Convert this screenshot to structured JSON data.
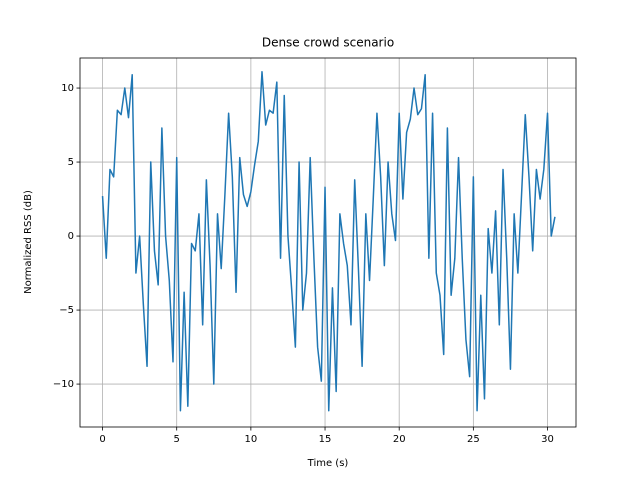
{
  "chart_data": {
    "type": "line",
    "title": "Dense crowd scenario",
    "x_label": "Time (s)",
    "y_label": "Normalized RSS (dB)",
    "x": [
      0,
      0.25,
      0.5,
      0.75,
      1,
      1.25,
      1.5,
      1.75,
      2,
      2.25,
      2.5,
      2.75,
      3,
      3.25,
      3.5,
      3.75,
      4,
      4.25,
      4.5,
      4.75,
      5,
      5.25,
      5.5,
      5.75,
      6,
      6.25,
      6.5,
      6.75,
      7,
      7.25,
      7.5,
      7.75,
      8,
      8.25,
      8.5,
      8.75,
      9,
      9.25,
      9.5,
      9.75,
      10,
      10.25,
      10.5,
      10.75,
      11,
      11.25,
      11.5,
      11.75,
      12,
      12.25,
      12.5,
      12.75,
      13,
      13.25,
      13.5,
      13.75,
      14,
      14.25,
      14.5,
      14.75,
      15,
      15.25,
      15.5,
      15.75,
      16,
      16.25,
      16.5,
      16.75,
      17,
      17.25,
      17.5,
      17.75,
      18,
      18.25,
      18.5,
      18.75,
      19,
      19.25,
      19.5,
      19.75,
      20,
      20.25,
      20.5,
      20.75,
      21,
      21.25,
      21.5,
      21.75,
      22,
      22.25,
      22.5,
      22.75,
      23,
      23.25,
      23.5,
      23.75,
      24,
      24.25,
      24.5,
      24.75,
      25,
      25.25,
      25.5,
      25.75,
      26,
      26.25,
      26.5,
      26.75,
      27,
      27.25,
      27.5,
      27.75,
      28,
      28.25,
      28.5,
      28.75,
      29,
      29.25,
      29.5,
      29.75,
      30,
      30.25,
      30.5
    ],
    "series": [
      {
        "name": "RSS",
        "color": "#1f77b4",
        "values": [
          2.7,
          -1.5,
          4.5,
          4,
          8.5,
          8.2,
          10,
          8,
          10.9,
          -2.5,
          0,
          -4.6,
          -8.8,
          5,
          -1,
          -3.3,
          7.3,
          0,
          -3,
          -8.5,
          5.3,
          -11.8,
          -3.8,
          -11.5,
          -0.5,
          -1,
          1.5,
          -6,
          3.8,
          -2,
          -10,
          1.5,
          -2.2,
          2.8,
          8.3,
          4,
          -3.8,
          5.3,
          2.8,
          2,
          3,
          4.8,
          6.4,
          11.1,
          7.5,
          8.5,
          8.3,
          10.4,
          -1.5,
          9.5,
          0,
          -3.6,
          -7.5,
          5,
          -5,
          -2.5,
          5.3,
          -1.5,
          -7.5,
          -9.8,
          3.3,
          -11.8,
          -3.5,
          -10.5,
          1.5,
          -0.5,
          -2,
          -6,
          3.8,
          -2.2,
          -8.8,
          1.5,
          -3,
          2.5,
          8.3,
          4,
          -2,
          5,
          1.5,
          -0.3,
          8.3,
          2.5,
          7,
          7.9,
          10,
          8.2,
          8.6,
          10.9,
          -1.5,
          8.3,
          -2.5,
          -4,
          -8,
          7.3,
          -4,
          -1.5,
          5.3,
          -1.5,
          -7,
          -9.5,
          4,
          -11.8,
          -4,
          -11,
          0.5,
          -2.5,
          1.7,
          -6,
          4.5,
          -1.5,
          -9,
          1.5,
          -2.5,
          2.8,
          8.2,
          4,
          -1,
          4.5,
          2.5,
          4.5,
          8.3,
          0,
          1.3
        ]
      }
    ],
    "xlim": [
      -1.52,
      31.92
    ],
    "ylim": [
      -12.9,
      12.03
    ],
    "xticks": [
      0,
      5,
      10,
      15,
      20,
      25,
      30
    ],
    "yticks": [
      {
        "value": -10,
        "label": "−10"
      },
      {
        "value": -5,
        "label": "−5"
      },
      0,
      5,
      10
    ],
    "grid": true
  }
}
